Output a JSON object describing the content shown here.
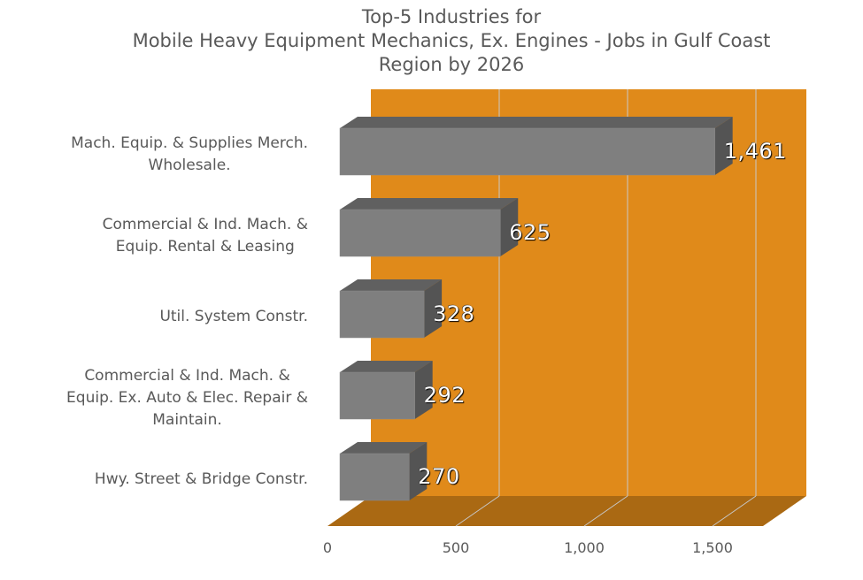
{
  "chart_data": {
    "type": "bar",
    "orientation": "horizontal",
    "style": "3d-clustered",
    "title": "Top-5 Industries for Mobile Heavy Equipment Mechanics, Ex. Engines - Jobs in Gulf Coast Region by 2026",
    "title_lines": [
      "Top-5 Industries for",
      "Mobile Heavy Equipment Mechanics, Ex. Engines - Jobs in Gulf Coast",
      "Region by 2026"
    ],
    "categories": [
      "Mach. Equip. & Supplies Merch. Wholesale.",
      "Commercial & Ind. Mach. & Equip. Rental & Leasing",
      "Util. System Constr.",
      "Commercial & Ind. Mach. & Equip. Ex. Auto & Elec. Repair & Maintain.",
      "Hwy. Street & Bridge Constr."
    ],
    "category_label_lines": [
      [
        "Mach. Equip. & Supplies Merch.",
        "Wholesale."
      ],
      [
        "Commercial & Ind. Mach. &",
        "Equip. Rental & Leasing"
      ],
      [
        "Util. System Constr."
      ],
      [
        "Commercial & Ind. Mach. &",
        "Equip. Ex. Auto & Elec. Repair &",
        "Maintain."
      ],
      [
        "Hwy. Street & Bridge Constr."
      ]
    ],
    "values": [
      1461,
      625,
      328,
      292,
      270
    ],
    "value_labels": [
      "1,461",
      "625",
      "328",
      "292",
      "270"
    ],
    "xlabel": "",
    "ylabel": "",
    "xlim": [
      0,
      1700
    ],
    "x_ticks": [
      0,
      500,
      1000,
      1500
    ],
    "x_tick_labels": [
      "0",
      "500",
      "1,000",
      "1,500"
    ],
    "grid": "vertical",
    "legend": "none",
    "colors": {
      "back_wall": "#E08A1A",
      "floor": "#AA6913",
      "gridline": "#C8C8C8",
      "bar_front": "#7F7F7F",
      "bar_top": "#606060",
      "bar_side": "#545454",
      "text": "#595959",
      "value_label": "#FFFFFF"
    }
  }
}
